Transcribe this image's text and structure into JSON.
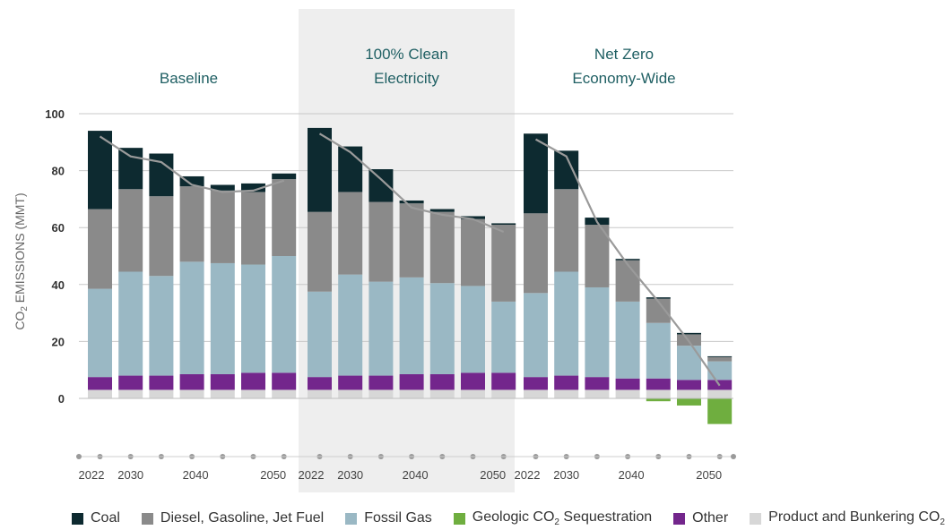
{
  "chart_data": {
    "type": "bar",
    "stacked": true,
    "ylabel_main": "CO",
    "ylabel_sub": "2",
    "ylabel_rest": " EMISSIONS (MMT)",
    "ylim": [
      -15,
      100
    ],
    "yticks": [
      "100",
      "80",
      "60",
      "40",
      "20",
      "0"
    ],
    "ytick_values": [
      100,
      80,
      60,
      40,
      20,
      0
    ],
    "grid": true,
    "colors": {
      "coal": "#0d2a30",
      "diesel": "#8a8a8a",
      "gas": "#9ab8c4",
      "geologic": "#6fae3f",
      "other": "#73268c",
      "product": "#d7d7d7",
      "trend": "#9a9a9a",
      "panel": "#eeeeee",
      "title": "#1f5f63"
    },
    "series_names": [
      "Coal",
      "Diesel, Gasoline, Jet Fuel",
      "Fossil Gas",
      "Geologic CO2 Sequestration",
      "Other",
      "Product and Bunkering CO2"
    ],
    "panels": [
      {
        "title_lines": [
          "Baseline"
        ],
        "shaded": false,
        "x_labels": [
          "2022",
          "2030",
          "",
          "2040",
          "",
          "2050"
        ],
        "bars": [
          {
            "product": 3,
            "other": 4.5,
            "gas": 31,
            "diesel": 28,
            "coal": 27.5,
            "geologic": 0
          },
          {
            "product": 3,
            "other": 5,
            "gas": 36.5,
            "diesel": 29,
            "coal": 14.5,
            "geologic": 0
          },
          {
            "product": 3,
            "other": 5,
            "gas": 35,
            "diesel": 28,
            "coal": 15,
            "geologic": 0
          },
          {
            "product": 3,
            "other": 5.5,
            "gas": 39.5,
            "diesel": 26.5,
            "coal": 3.5,
            "geologic": 0
          },
          {
            "product": 3,
            "other": 5.5,
            "gas": 39,
            "diesel": 25.5,
            "coal": 2,
            "geologic": 0
          },
          {
            "product": 3,
            "other": 6,
            "gas": 38,
            "diesel": 25.5,
            "coal": 3,
            "geologic": 0
          },
          {
            "product": 3,
            "other": 6,
            "gas": 41,
            "diesel": 27,
            "coal": 2,
            "geologic": 0
          }
        ],
        "trend": [
          92,
          85,
          83,
          75,
          72.5,
          73,
          76.5
        ]
      },
      {
        "title_lines": [
          "100% Clean",
          "Electricity"
        ],
        "shaded": true,
        "x_labels": [
          "2022",
          "2030",
          "",
          "2040",
          "",
          "2050"
        ],
        "bars": [
          {
            "product": 3,
            "other": 4.5,
            "gas": 30,
            "diesel": 28,
            "coal": 29.5,
            "geologic": 0
          },
          {
            "product": 3,
            "other": 5,
            "gas": 35.5,
            "diesel": 29,
            "coal": 16,
            "geologic": 0
          },
          {
            "product": 3,
            "other": 5,
            "gas": 33,
            "diesel": 28,
            "coal": 11.5,
            "geologic": 0
          },
          {
            "product": 3,
            "other": 5.5,
            "gas": 34,
            "diesel": 26,
            "coal": 1,
            "geologic": 0
          },
          {
            "product": 3,
            "other": 5.5,
            "gas": 32,
            "diesel": 25,
            "coal": 1,
            "geologic": 0
          },
          {
            "product": 3,
            "other": 6,
            "gas": 30.5,
            "diesel": 23.5,
            "coal": 1,
            "geologic": 0
          },
          {
            "product": 3,
            "other": 6,
            "gas": 25,
            "diesel": 27,
            "coal": 0.5,
            "geologic": 0
          }
        ],
        "trend": [
          93,
          86.5,
          77,
          67,
          64.5,
          63,
          58.5
        ]
      },
      {
        "title_lines": [
          "Net Zero",
          "Economy-Wide"
        ],
        "shaded": false,
        "x_labels": [
          "2022",
          "2030",
          "",
          "2040",
          "",
          "2050"
        ],
        "bars": [
          {
            "product": 3,
            "other": 4.5,
            "gas": 29.5,
            "diesel": 28,
            "coal": 28,
            "geologic": 0
          },
          {
            "product": 3,
            "other": 5,
            "gas": 36.5,
            "diesel": 29,
            "coal": 13.5,
            "geologic": 0
          },
          {
            "product": 3,
            "other": 4.5,
            "gas": 31.5,
            "diesel": 22,
            "coal": 2.5,
            "geologic": 0
          },
          {
            "product": 3,
            "other": 4,
            "gas": 27,
            "diesel": 14.5,
            "coal": 0.5,
            "geologic": 0
          },
          {
            "product": 3,
            "other": 4,
            "gas": 19.5,
            "diesel": 8.5,
            "coal": 0.5,
            "geologic": -1
          },
          {
            "product": 3,
            "other": 3.5,
            "gas": 12,
            "diesel": 4,
            "coal": 0.5,
            "geologic": -2.5
          },
          {
            "product": 3,
            "other": 3.5,
            "gas": 6.5,
            "diesel": 1.5,
            "coal": 0.3,
            "geologic": -9
          }
        ],
        "trend": [
          91,
          85,
          62,
          47,
          34,
          20,
          4.5
        ]
      }
    ],
    "legend": [
      {
        "key": "coal",
        "label": "Coal",
        "color": "#0d2a30"
      },
      {
        "key": "diesel",
        "label": "Diesel, Gasoline, Jet Fuel",
        "color": "#8a8a8a"
      },
      {
        "key": "gas",
        "label": "Fossil Gas",
        "color": "#9ab8c4"
      },
      {
        "key": "geologic",
        "label_main": "Geologic CO",
        "label_sub": "2",
        "label_rest": " Sequestration",
        "color": "#6fae3f"
      },
      {
        "key": "other",
        "label": "Other",
        "color": "#73268c"
      },
      {
        "key": "product",
        "label_main": "Product and Bunkering CO",
        "label_sub": "2",
        "label_rest": "",
        "color": "#d7d7d7"
      }
    ]
  }
}
